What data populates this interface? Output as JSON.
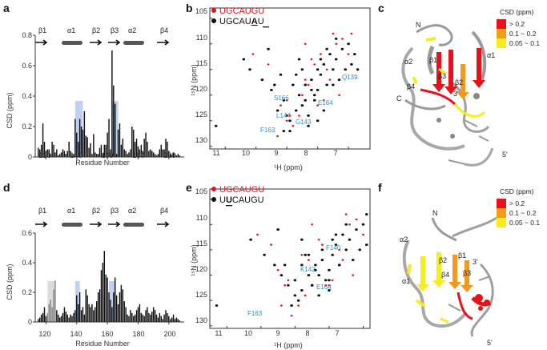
{
  "panels": {
    "a": {
      "label": "a"
    },
    "b": {
      "label": "b"
    },
    "c": {
      "label": "c"
    },
    "d": {
      "label": "d"
    },
    "e": {
      "label": "e"
    },
    "f": {
      "label": "f"
    }
  },
  "bar_top": {
    "ylabel": "CSD (ppm)",
    "xlabel": "Residue Number",
    "yticks": [
      "0",
      "0.2",
      "0.4",
      "0.6",
      "0.8"
    ],
    "xticks": [
      "120",
      "140",
      "160",
      "180",
      "200"
    ],
    "ss": [
      "β1",
      "α1",
      "β2",
      "β3",
      "α2",
      "β4"
    ]
  },
  "bar_bottom": {
    "ylabel": "CSD (ppm)",
    "xlabel": "Residue Number",
    "yticks": [
      "0",
      "0.2",
      "0.4",
      "0.6"
    ],
    "xticks": [
      "120",
      "140",
      "160",
      "180",
      "200"
    ],
    "ss": [
      "β1",
      "α1",
      "β2",
      "β3",
      "α2",
      "β4"
    ]
  },
  "hsqc_top": {
    "legend1": "UGCAUGU",
    "legend2a": "UGCAU",
    "legend2b": "A",
    "legend2c": "U",
    "ylabel": "¹⁵N (ppm)",
    "xlabel": "¹H (ppm)",
    "yticks": [
      "105",
      "110",
      "115",
      "120",
      "125",
      "130"
    ],
    "xticks": [
      "11",
      "10",
      "9",
      "8",
      "7"
    ],
    "residues": [
      "Q139",
      "S166",
      "E164",
      "L144",
      "G143",
      "F163"
    ]
  },
  "hsqc_bottom": {
    "legend1": "UGCAUGU",
    "legend2a": "U",
    "legend2b": "U",
    "legend2c": "CAUGU",
    "ylabel": "¹⁵N (ppm)",
    "xlabel": "¹H (ppm)",
    "yticks": [
      "105",
      "110",
      "115",
      "120",
      "125",
      "130"
    ],
    "xticks": [
      "11",
      "10",
      "9",
      "8",
      "7"
    ],
    "residues": [
      "F140",
      "K142",
      "E164",
      "F163"
    ]
  },
  "struct_top": {
    "legend_title": "CSD (ppm)",
    "legend": [
      "> 0.2",
      "0.1 ~ 0.2",
      "0.05 ~ 0.1"
    ],
    "labels": [
      "N",
      "α2",
      "β1",
      "α1",
      "β4",
      "β3",
      "β2",
      "C",
      "3'",
      "5'"
    ]
  },
  "struct_bottom": {
    "legend_title": "CSD (ppm)",
    "legend": [
      "> 0.2",
      "0.1 ~ 0.2",
      "0.05 ~ 0.1"
    ],
    "labels": [
      "N",
      "C",
      "α2",
      "β2",
      "β1",
      "3'",
      "β4",
      "β3",
      "α1",
      "5'"
    ]
  },
  "colors": {
    "red": "#e8111a",
    "orange": "#f39a1c",
    "yellow": "#f4ee1a",
    "blue": "#bfd1ee",
    "grey": "#dcdcdc",
    "cyan": "#2a8fc7"
  },
  "chart_data": [
    {
      "type": "bar",
      "title": "a",
      "xlabel": "Residue Number",
      "ylabel": "CSD (ppm)",
      "xlim": [
        113,
        210
      ],
      "ylim": [
        0,
        0.8
      ],
      "highlight_ranges": [
        [
          139,
          144
        ],
        [
          163,
          167
        ]
      ],
      "x": [
        115,
        116,
        117,
        118,
        119,
        120,
        121,
        122,
        123,
        124,
        125,
        126,
        127,
        128,
        129,
        130,
        131,
        132,
        133,
        134,
        135,
        136,
        137,
        138,
        139,
        140,
        141,
        142,
        143,
        144,
        145,
        146,
        147,
        148,
        149,
        150,
        151,
        152,
        153,
        154,
        155,
        156,
        157,
        158,
        159,
        160,
        161,
        162,
        163,
        164,
        165,
        166,
        167,
        168,
        169,
        170,
        171,
        172,
        173,
        174,
        175,
        176,
        177,
        178,
        179,
        180,
        181,
        182,
        183,
        184,
        185,
        186,
        187,
        188,
        189,
        190,
        191,
        192,
        193,
        194,
        195,
        196,
        197,
        198,
        199,
        200,
        201,
        202,
        203,
        204,
        205,
        206,
        207
      ],
      "values": [
        0.06,
        0.05,
        0.08,
        0.22,
        0.1,
        0.04,
        0.05,
        0.05,
        0.02,
        0.1,
        0.08,
        0.03,
        0.05,
        0.01,
        0.02,
        0.03,
        0.05,
        0.04,
        0.02,
        0.04,
        0.1,
        0.04,
        0.02,
        0.02,
        0.25,
        0.16,
        0.1,
        0.25,
        0.2,
        0.18,
        0.3,
        0.14,
        0.13,
        0.06,
        0.09,
        0.02,
        0.15,
        0.03,
        0.02,
        0.02,
        0.06,
        0.08,
        0.02,
        0.08,
        0.08,
        0.16,
        0.25,
        0.05,
        0.7,
        0.47,
        0.35,
        0.02,
        0.18,
        0.22,
        0.08,
        0.12,
        0.05,
        0.04,
        0.02,
        0.03,
        0.05,
        0.2,
        0.18,
        0.1,
        0.12,
        0.07,
        0.05,
        0.08,
        0.04,
        0.12,
        0.16,
        0.1,
        0.04,
        0.05,
        0.04,
        0.03,
        0.02,
        0.01,
        0.02,
        0.05,
        0.08,
        0.05,
        0.05,
        0.12,
        0.1,
        0.04,
        0.02,
        0.01,
        0.03,
        0.02,
        0.01,
        0.02,
        0.01
      ]
    },
    {
      "type": "bar",
      "title": "d",
      "xlabel": "Residue Number",
      "ylabel": "CSD (ppm)",
      "xlim": [
        113,
        210
      ],
      "ylim": [
        0,
        0.6
      ],
      "highlight_ranges": [
        [
          121,
          126
        ],
        [
          139,
          142
        ],
        [
          161,
          165
        ]
      ],
      "x": [
        115,
        116,
        117,
        118,
        119,
        120,
        121,
        122,
        123,
        124,
        125,
        126,
        127,
        128,
        129,
        130,
        131,
        132,
        133,
        134,
        135,
        136,
        137,
        138,
        139,
        140,
        141,
        142,
        143,
        144,
        145,
        146,
        147,
        148,
        149,
        150,
        151,
        152,
        153,
        154,
        155,
        156,
        157,
        158,
        159,
        160,
        161,
        162,
        163,
        164,
        165,
        166,
        167,
        168,
        169,
        170,
        171,
        172,
        173,
        174,
        175,
        176,
        177,
        178,
        179,
        180,
        181,
        182,
        183,
        184,
        185,
        186,
        187,
        188,
        189,
        190,
        191,
        192,
        193,
        194,
        195,
        196,
        197,
        198,
        199,
        200,
        201,
        202,
        203,
        204,
        205,
        206,
        207
      ],
      "values": [
        0.02,
        0.03,
        0.05,
        0.06,
        0.1,
        0.04,
        0.06,
        0.12,
        0.15,
        0.1,
        0.22,
        0.28,
        0.08,
        0.05,
        0.03,
        0.04,
        0.06,
        0.1,
        0.07,
        0.05,
        0.03,
        0.05,
        0.04,
        0.06,
        0.08,
        0.18,
        0.12,
        0.2,
        0.08,
        0.1,
        0.05,
        0.22,
        0.18,
        0.12,
        0.1,
        0.12,
        0.08,
        0.1,
        0.14,
        0.2,
        0.22,
        0.35,
        0.4,
        0.48,
        0.32,
        0.3,
        0.2,
        0.15,
        0.1,
        0.2,
        0.3,
        0.18,
        0.12,
        0.2,
        0.25,
        0.22,
        0.14,
        0.1,
        0.05,
        0.04,
        0.08,
        0.06,
        0.04,
        0.05,
        0.08,
        0.1,
        0.12,
        0.06,
        0.05,
        0.04,
        0.08,
        0.1,
        0.06,
        0.05,
        0.07,
        0.1,
        0.08,
        0.05,
        0.03,
        0.06,
        0.04,
        0.02,
        0.05,
        0.08,
        0.06,
        0.04,
        0.02,
        0.03,
        0.05,
        0.02,
        0.03,
        0.02,
        0.01
      ]
    },
    {
      "type": "scatter",
      "title": "b",
      "xlabel": "¹H (ppm)",
      "ylabel": "¹⁵N (ppm)",
      "xlim": [
        11.5,
        6.3
      ],
      "ylim": [
        130.5,
        103
      ],
      "series": [
        {
          "name": "UGCAUGU",
          "color": "#e8111a",
          "x": [
            10.1,
            9.4,
            9.0,
            8.9,
            8.7,
            8.5,
            8.3,
            8.1,
            7.9,
            7.6,
            7.4,
            7.2,
            7.0,
            9.6,
            9.2,
            8.8,
            8.4,
            8.0,
            7.7,
            7.3,
            6.9,
            9.3,
            8.6,
            8.2,
            7.8,
            7.5,
            7.1,
            9.0,
            8.4
          ],
          "y": [
            112,
            118,
            121,
            124,
            116,
            120,
            118,
            114,
            112,
            117,
            110,
            109,
            112,
            114,
            122,
            126,
            110,
            122,
            115,
            120,
            108,
            128,
            124,
            113,
            121,
            108,
            115,
            125,
            117
          ]
        },
        {
          "name": "UGCAUAU",
          "color": "#111111",
          "x": [
            10.4,
            10.2,
            9.8,
            9.5,
            9.3,
            9.1,
            8.9,
            8.8,
            8.7,
            8.6,
            8.5,
            8.4,
            8.3,
            8.2,
            8.1,
            8.0,
            7.9,
            7.8,
            7.7,
            7.6,
            7.5,
            7.4,
            7.3,
            7.2,
            7.1,
            7.0,
            6.9,
            6.8,
            9.2,
            8.9,
            8.6,
            8.3,
            8.0,
            7.7,
            7.4,
            9.6,
            9.0,
            8.5,
            8.1,
            7.8,
            9.4,
            8.7,
            8.2,
            7.9,
            7.5,
            9.1,
            8.4,
            8.0,
            11.3,
            6.7
          ],
          "y": [
            113,
            115,
            117,
            119,
            123,
            121,
            125,
            118,
            116,
            120,
            122,
            118,
            124,
            117,
            121,
            119,
            116,
            114,
            118,
            112,
            115,
            113,
            117,
            111,
            115,
            110,
            114,
            112,
            116,
            127,
            113,
            126,
            115,
            111,
            109,
            111,
            124,
            115,
            120,
            123,
            118,
            123,
            119,
            113,
            118,
            127,
            121,
            125,
            126,
            115
          ]
        }
      ]
    },
    {
      "type": "scatter",
      "title": "e",
      "xlabel": "¹H (ppm)",
      "ylabel": "¹⁵N (ppm)",
      "xlim": [
        11.5,
        6.8
      ],
      "ylim": [
        130.5,
        103
      ],
      "series": [
        {
          "name": "UGCAUGU",
          "color": "#e8111a",
          "x": [
            10.1,
            9.5,
            9.2,
            9.0,
            8.8,
            8.6,
            8.4,
            8.2,
            8.0,
            7.8,
            7.6,
            7.4,
            7.2,
            7.0,
            9.7,
            9.3,
            8.9,
            8.5,
            8.1,
            7.7,
            7.3,
            9.1,
            8.7,
            8.3,
            7.9,
            7.5,
            8.6,
            9.4
          ],
          "y": [
            112,
            119,
            121,
            124,
            116,
            120,
            118,
            114,
            122,
            112,
            117,
            110,
            109,
            112,
            114,
            122,
            126,
            110,
            122,
            115,
            120,
            128,
            124,
            113,
            121,
            108,
            117,
            126
          ]
        },
        {
          "name": "UUCAUGU",
          "color": "#111111",
          "x": [
            10.3,
            9.9,
            9.6,
            9.4,
            9.2,
            9.0,
            8.9,
            8.8,
            8.7,
            8.6,
            8.5,
            8.4,
            8.3,
            8.2,
            8.1,
            8.0,
            7.9,
            7.8,
            7.7,
            7.6,
            7.5,
            7.4,
            7.3,
            7.2,
            7.1,
            7.0,
            6.9,
            9.1,
            8.8,
            8.5,
            8.2,
            8.0,
            7.8,
            7.5,
            9.5,
            9.0,
            8.6,
            8.3,
            8.0,
            7.7,
            9.3,
            8.8,
            8.4,
            7.9,
            11.3,
            6.9
          ],
          "y": [
            113,
            116,
            118,
            120,
            122,
            121,
            125,
            118,
            116,
            120,
            122,
            118,
            124,
            117,
            121,
            119,
            116,
            114,
            118,
            112,
            115,
            113,
            117,
            111,
            115,
            110,
            114,
            126,
            113,
            122,
            115,
            121,
            112,
            110,
            111,
            124,
            116,
            120,
            123,
            118,
            118,
            123,
            119,
            113,
            126,
            108
          ]
        }
      ]
    }
  ]
}
